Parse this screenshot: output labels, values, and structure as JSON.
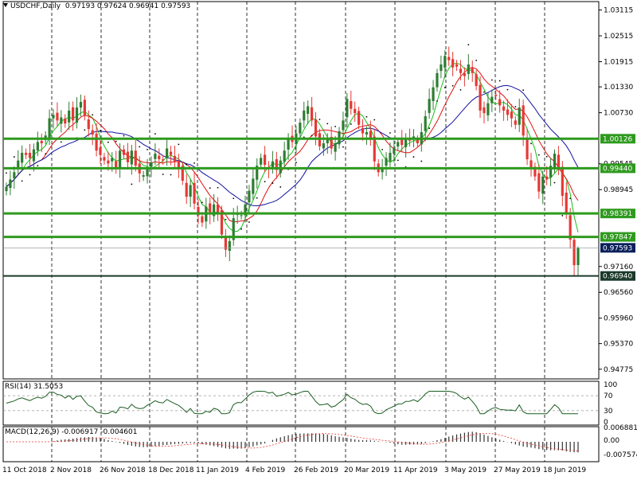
{
  "header": {
    "symbol": "USDCHF,Daily",
    "ohlc": "0.97193 0.97624 0.96941 0.97593"
  },
  "rsi": {
    "label": "RSI(14) 31.5053",
    "levels": [
      "100",
      "70",
      "30",
      "0"
    ]
  },
  "macd": {
    "label": "MACD(12,26,9) -0.006917 -0.004601",
    "levels": [
      "0.006881",
      "0.00",
      "-0.007574"
    ]
  },
  "colors": {
    "bull": "#2e7d32",
    "bear": "#e53935",
    "level": "#2e9a1e",
    "ma_fast": "#12c012",
    "ma_mid": "#e01010",
    "ma_slow": "#1010a0",
    "grid": "#000000"
  },
  "chart_data": {
    "type": "candlestick",
    "ylim": [
      0.9455,
      1.0331
    ],
    "price_ticks": [
      "1.03115",
      "1.02515",
      "1.01915",
      "1.01330",
      "1.00730",
      "0.99545",
      "0.98945",
      "0.97160",
      "0.96560",
      "0.95960",
      "0.95370",
      "0.94775"
    ],
    "date_labels": [
      "11 Oct 2018",
      "2 Nov 2018",
      "26 Nov 2018",
      "18 Dec 2018",
      "11 Jan 2019",
      "4 Feb 2019",
      "26 Feb 2019",
      "20 Mar 2019",
      "11 Apr 2019",
      "3 May 2019",
      "27 May 2019",
      "18 Jun 2019"
    ],
    "levels": [
      {
        "value": 1.00126,
        "label": "1.00126",
        "style": "green"
      },
      {
        "value": 0.9944,
        "label": "0.99440",
        "style": "green"
      },
      {
        "value": 0.98391,
        "label": "0.98391",
        "style": "green"
      },
      {
        "value": 0.97847,
        "label": "0.97847",
        "style": "green"
      },
      {
        "value": 0.97593,
        "label": "0.97593",
        "style": "current"
      },
      {
        "value": 0.9694,
        "label": "0.96940",
        "style": "dark"
      }
    ],
    "closes": [
      0.9901,
      0.9918,
      0.9935,
      0.9962,
      0.998,
      0.9975,
      0.9968,
      0.9988,
      1.0005,
      1.0002,
      1.002,
      1.006,
      1.0068,
      1.0055,
      1.0062,
      1.0048,
      1.0078,
      1.0055,
      1.0085,
      1.0098,
      1.0065,
      1.0035,
      1.0022,
      0.9985,
      0.9975,
      0.9962,
      0.9955,
      0.9968,
      0.9945,
      0.9985,
      0.9975,
      0.9958,
      0.9985,
      0.995,
      0.9932,
      0.9928,
      0.9945,
      0.9958,
      0.9978,
      0.9965,
      0.9962,
      0.999,
      0.9975,
      0.9958,
      0.9942,
      0.9915,
      0.9878,
      0.9905,
      0.9862,
      0.9835,
      0.9818,
      0.9855,
      0.9838,
      0.986,
      0.9842,
      0.979,
      0.9755,
      0.9775,
      0.9828,
      0.984,
      0.9835,
      0.986,
      0.9892,
      0.992,
      0.995,
      0.9968,
      0.9952,
      0.9945,
      0.996,
      0.994,
      0.9962,
      0.9985,
      1.0012,
      1.0005,
      1.0025,
      1.005,
      1.0078,
      1.0088,
      1.0055,
      1.0018,
      0.9995,
      1.0002,
      1.0012,
      0.999,
      1.0002,
      1.003,
      1.0055,
      1.0105,
      1.0082,
      1.0072,
      1.0045,
      1.0025,
      1.0028,
      1.001,
      0.996,
      0.9935,
      0.9945,
      0.9968,
      0.998,
      0.9992,
      1.0005,
      0.9998,
      1.0012,
      1.0008,
      1.0018,
      1.0002,
      1.0028,
      1.0065,
      1.0105,
      1.0132,
      1.0165,
      1.0185,
      1.0205,
      1.0195,
      1.0178,
      1.018,
      1.0165,
      1.0158,
      1.0185,
      1.0165,
      1.0135,
      1.0078,
      1.0072,
      1.0095,
      1.011,
      1.0112,
      1.009,
      1.0078,
      1.0068,
      1.006,
      1.0045,
      1.0085,
      1.002,
      0.9965,
      0.9945,
      0.9925,
      0.989,
      0.9925,
      0.9918,
      0.995,
      0.9978,
      0.9945,
      0.988,
      0.984,
      0.9778,
      0.9719,
      0.9759
    ]
  }
}
